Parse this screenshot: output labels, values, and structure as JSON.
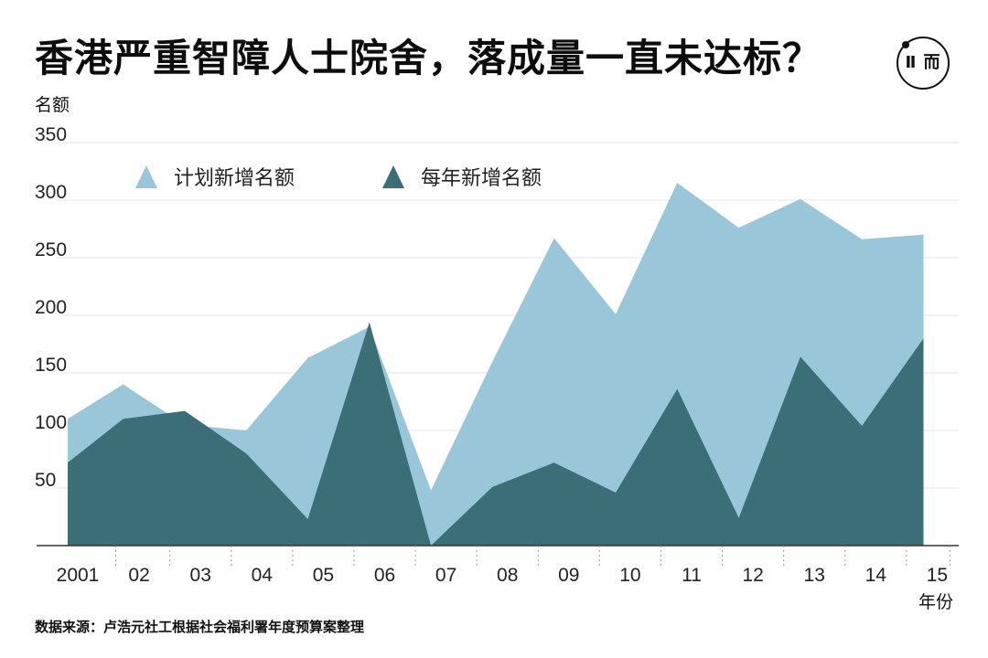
{
  "title": "香港严重智障人士院舍，落成量一直未达标？",
  "logo": {
    "text": "Ⅱ 而",
    "icon": "initium-logo-icon"
  },
  "source": "数据来源：卢浩元社工根据社会福利署年度预算案整理",
  "colors": {
    "planned": "#9ac6d9",
    "actual": "#3b6e76",
    "grid": "#e6e6e6",
    "axis": "#333333"
  },
  "chart_data": {
    "type": "area",
    "ylabel": "名额",
    "xlabel": "年份",
    "ylim": [
      0,
      350
    ],
    "yticks": [
      50,
      100,
      150,
      200,
      250,
      300,
      350
    ],
    "x_tick_labels": [
      "2001",
      "02",
      "03",
      "04",
      "05",
      "06",
      "07",
      "08",
      "09",
      "10",
      "11",
      "12",
      "13",
      "14",
      "15"
    ],
    "grid": true,
    "legend_position": "top-left",
    "series": [
      {
        "name": "计划新增名额",
        "color": "#9ac6d9",
        "marker": "triangle",
        "x": [
          2000.6,
          2001.5,
          2002.5,
          2003.5,
          2004.5,
          2005.5,
          2006.5,
          2007.5,
          2008.5,
          2009.5,
          2010.5,
          2011.5,
          2012.5,
          2013.5,
          2014.5
        ],
        "values": [
          110,
          140,
          105,
          100,
          163,
          190,
          48,
          160,
          267,
          201,
          315,
          276,
          301,
          266,
          270
        ]
      },
      {
        "name": "每年新增名额",
        "color": "#3b6e76",
        "marker": "triangle",
        "x": [
          2000.6,
          2001.5,
          2002.5,
          2003.5,
          2004.5,
          2005.5,
          2006.5,
          2007.5,
          2008.5,
          2009.5,
          2010.5,
          2011.5,
          2012.5,
          2013.5,
          2014.5
        ],
        "values": [
          72,
          110,
          117,
          80,
          23,
          194,
          0,
          51,
          72,
          46,
          136,
          24,
          164,
          104,
          180
        ]
      }
    ]
  }
}
